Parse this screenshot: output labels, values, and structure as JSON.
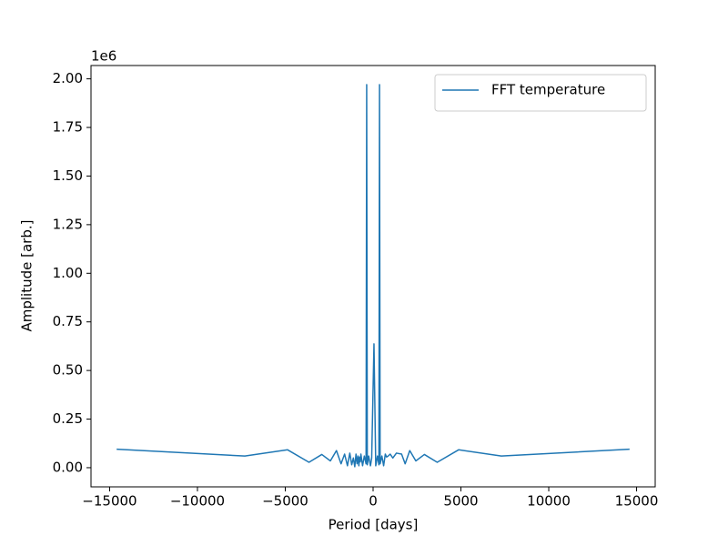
{
  "chart_data": {
    "type": "line",
    "xlabel": "Period [days]",
    "ylabel": "Amplitude [arb.]",
    "y_offset_label": "1e6",
    "x": [
      -14600,
      -7300,
      -4867,
      -3650,
      -2920,
      -2433,
      -2086,
      -1825,
      -1622,
      -1460,
      -1327,
      -1217,
      -1123,
      -1043,
      -973,
      -913,
      -859,
      -811,
      -768,
      -730,
      -695,
      -600,
      -500,
      -400,
      -365,
      -330,
      -250,
      -150,
      -80,
      50,
      150,
      250,
      330,
      365,
      400,
      500,
      600,
      695,
      768,
      859,
      973,
      1123,
      1327,
      1622,
      1825,
      2086,
      2433,
      2920,
      3650,
      4867,
      7300,
      14600
    ],
    "series": [
      {
        "name": "FFT temperature",
        "color": "#1f77b4",
        "values": [
          95000,
          60000,
          92000,
          28000,
          68000,
          35000,
          88000,
          20000,
          70000,
          10000,
          75000,
          15000,
          50000,
          5000,
          70000,
          20000,
          60000,
          10000,
          55000,
          30000,
          70000,
          10000,
          60000,
          20000,
          1970000,
          15000,
          60000,
          10000,
          50000,
          637000,
          10000,
          60000,
          15000,
          1970000,
          20000,
          60000,
          10000,
          70000,
          55000,
          60000,
          70000,
          50000,
          75000,
          70000,
          20000,
          88000,
          35000,
          68000,
          28000,
          92000,
          60000,
          95000
        ]
      }
    ],
    "xlim": [
      -16060,
      16060
    ],
    "xticks": [
      {
        "value": -15000,
        "label": "−15000"
      },
      {
        "value": -10000,
        "label": "−10000"
      },
      {
        "value": -5000,
        "label": "−5000"
      },
      0,
      5000,
      10000,
      15000
    ],
    "ylim": [
      -98500,
      2068500
    ],
    "yticks": [
      {
        "value": 0,
        "label": "0.00"
      },
      {
        "value": 250000,
        "label": "0.25"
      },
      {
        "value": 500000,
        "label": "0.50"
      },
      {
        "value": 750000,
        "label": "0.75"
      },
      {
        "value": 1000000,
        "label": "1.00"
      },
      {
        "value": 1250000,
        "label": "1.25"
      },
      {
        "value": 1500000,
        "label": "1.50"
      },
      {
        "value": 1750000,
        "label": "1.75"
      },
      {
        "value": 2000000,
        "label": "2.00"
      }
    ],
    "grid": false,
    "legend": "upper right"
  }
}
